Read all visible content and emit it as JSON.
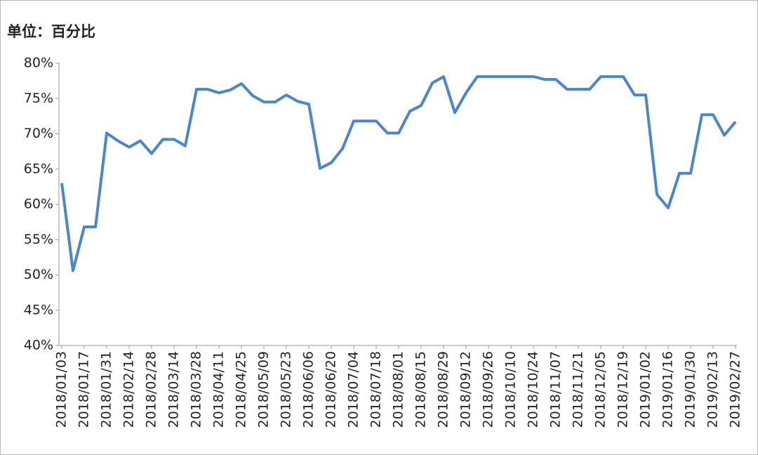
{
  "chart_data": {
    "type": "line",
    "title": "单位：百分比",
    "categories": [
      "2018/01/03",
      null,
      "2018/01/17",
      null,
      "2018/01/31",
      null,
      "2018/02/14",
      null,
      "2018/02/28",
      null,
      "2018/03/14",
      null,
      "2018/03/28",
      null,
      "2018/04/11",
      null,
      "2018/04/25",
      null,
      "2018/05/09",
      null,
      "2018/05/23",
      null,
      "2018/06/06",
      null,
      "2018/06/20",
      null,
      "2018/07/04",
      null,
      "2018/07/18",
      null,
      "2018/08/01",
      null,
      "2018/08/15",
      null,
      "2018/08/29",
      null,
      "2018/09/12",
      null,
      "2018/09/26",
      null,
      "2018/10/10",
      null,
      "2018/10/24",
      null,
      "2018/11/07",
      null,
      "2018/11/21",
      null,
      "2018/12/05",
      null,
      "2018/12/19",
      null,
      "2019/01/02",
      null,
      "2019/01/16",
      null,
      "2019/01/30",
      null,
      "2019/02/13",
      null,
      "2019/02/27"
    ],
    "values": [
      63,
      50.6,
      56.8,
      56.8,
      70.1,
      69,
      68.1,
      69,
      67.2,
      69.2,
      69.2,
      68.3,
      76.3,
      76.3,
      75.8,
      76.2,
      77.1,
      75.4,
      74.5,
      74.5,
      75.5,
      74.6,
      74.2,
      65.1,
      65.9,
      67.9,
      71.8,
      71.8,
      71.8,
      70.1,
      70.1,
      73.2,
      74,
      77.2,
      78.1,
      73,
      75.8,
      78.1,
      78.1,
      78.1,
      78.1,
      78.1,
      78.1,
      77.7,
      77.7,
      76.3,
      76.3,
      76.3,
      78.1,
      78.1,
      78.1,
      75.5,
      75.5,
      61.4,
      59.5,
      64.4,
      64.4,
      72.7,
      72.7,
      69.8,
      71.7
    ],
    "color": "#4a86d0",
    "ylim": [
      40,
      80
    ],
    "yticks": [
      {
        "value": 40,
        "label": "40%"
      },
      {
        "value": 45,
        "label": "45%"
      },
      {
        "value": 50,
        "label": "50%"
      },
      {
        "value": 55,
        "label": "55%"
      },
      {
        "value": 60,
        "label": "60%"
      },
      {
        "value": 65,
        "label": "65%"
      },
      {
        "value": 70,
        "label": "70%"
      },
      {
        "value": 75,
        "label": "75%"
      },
      {
        "value": 80,
        "label": "80%"
      }
    ],
    "grid": false
  }
}
